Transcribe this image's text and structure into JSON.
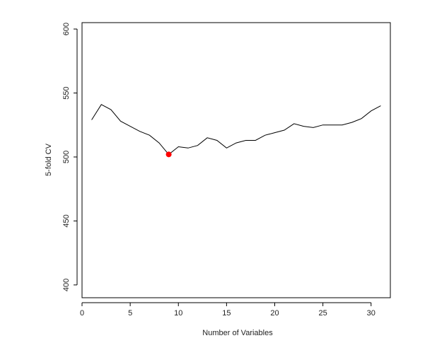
{
  "chart_data": {
    "type": "line",
    "title": "",
    "xlabel": "Number of Variables",
    "ylabel": "5-fold CV",
    "xlim": [
      0,
      32
    ],
    "ylim": [
      390,
      605
    ],
    "x_ticks": [
      0,
      5,
      10,
      15,
      20,
      25,
      30
    ],
    "y_ticks": [
      400,
      450,
      500,
      550,
      600
    ],
    "grid": false,
    "series": [
      {
        "x": [
          1,
          2,
          3,
          4,
          5,
          6,
          7,
          8,
          9,
          10,
          11,
          12,
          13,
          14,
          15,
          16,
          17,
          18,
          19,
          20,
          21,
          22,
          23,
          24,
          25,
          26,
          27,
          28,
          29,
          30,
          31
        ],
        "values": [
          529,
          541,
          537,
          528,
          524,
          520,
          517,
          511,
          502,
          508,
          507,
          509,
          515,
          513,
          507,
          511,
          513,
          513,
          517,
          519,
          521,
          526,
          524,
          523,
          525,
          525,
          525,
          527,
          530,
          536,
          540
        ],
        "color": "#000000"
      }
    ],
    "highlight_point": {
      "x": 9,
      "y": 502,
      "color": "#ff0000"
    }
  }
}
